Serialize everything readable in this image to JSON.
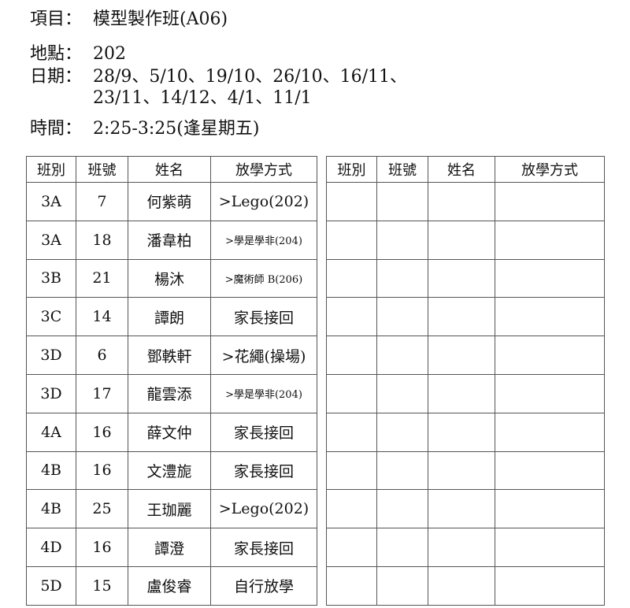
{
  "info": {
    "item_label": "項目：",
    "item": "模型製作班(A06)",
    "location_label": "地點：",
    "location": "202",
    "dates_label": "日期：",
    "dates_line1": "28/9、5/10、19/10、26/10、16/11、",
    "dates_line2": "23/11、14/12、4/1、11/1",
    "time_label": "時間：",
    "time": "2:25-3:25(逢星期五)"
  },
  "table": {
    "headers": [
      "班別",
      "班號",
      "姓名",
      "放學方式"
    ],
    "rows": [
      [
        "3A",
        "7",
        "何紫萌",
        ">Lego(202)"
      ],
      [
        "3A",
        "18",
        "潘韋柏",
        ">學是學非(204)"
      ],
      [
        "3B",
        "21",
        "楊沐",
        ">魔術師 B(206)"
      ],
      [
        "3C",
        "14",
        "譚朗",
        "家長接回"
      ],
      [
        "3D",
        "6",
        "鄧軼軒",
        ">花繩(操場)"
      ],
      [
        "3D",
        "17",
        "龍雲添",
        ">學是學非(204)"
      ],
      [
        "4A",
        "16",
        "薛文仲",
        "家長接回"
      ],
      [
        "4B",
        "16",
        "文澧旎",
        "家長接回"
      ],
      [
        "4B",
        "25",
        "王珈麗",
        ">Lego(202)"
      ],
      [
        "4D",
        "16",
        "譚澄",
        "家長接回"
      ],
      [
        "5D",
        "15",
        "盧俊睿",
        "自行放學"
      ]
    ]
  }
}
